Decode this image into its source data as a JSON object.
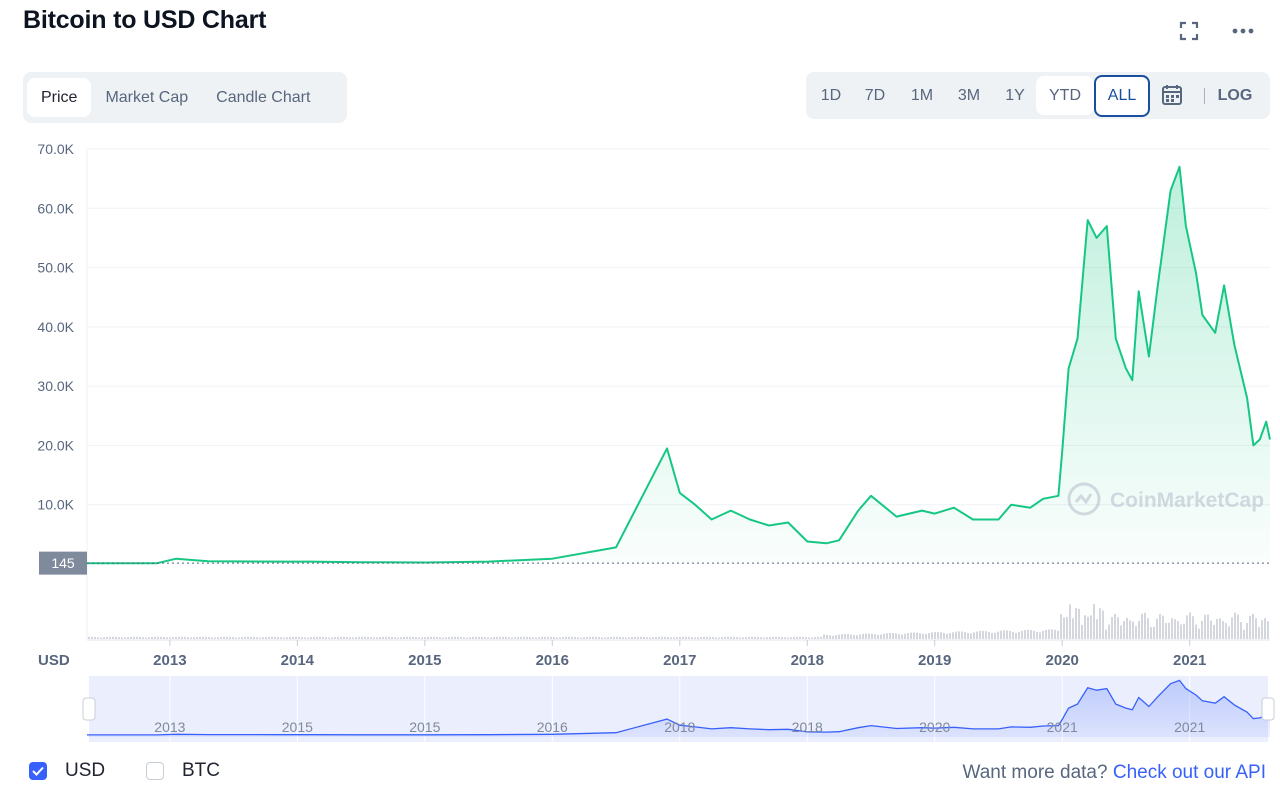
{
  "title": "Bitcoin to USD Chart",
  "tabs": [
    "Price",
    "Market Cap",
    "Candle Chart"
  ],
  "active_tab": "Price",
  "ranges": [
    "1D",
    "7D",
    "1M",
    "3M",
    "1Y",
    "YTD",
    "ALL"
  ],
  "active_range": "ALL",
  "log_label": "LOG",
  "currency_label": "USD",
  "watermark": "CoinMarketCap",
  "legend": [
    {
      "label": "USD",
      "checked": true
    },
    {
      "label": "BTC",
      "checked": false
    }
  ],
  "api_prefix": "Want more data?",
  "api_link": "Check out our API",
  "icons": [
    "expand-icon",
    "more-icon",
    "calendar-icon",
    "check-icon",
    "coinmarketcap-logo-icon"
  ],
  "colors": {
    "line": "#16c784",
    "volume": "#c9ced6",
    "navigator": "#3861fb",
    "accent": "#3861fb"
  },
  "chart_data": {
    "type": "area",
    "title": "",
    "xlabel": "",
    "ylabel": "",
    "y_ticks": [
      "10.0K",
      "20.0K",
      "30.0K",
      "40.0K",
      "50.0K",
      "60.0K",
      "70.0K"
    ],
    "ylim": [
      0,
      70000
    ],
    "x_ticks": [
      "2013",
      "2014",
      "2015",
      "2016",
      "2017",
      "2018",
      "2019",
      "2020",
      "2021"
    ],
    "navigator_ticks": [
      "2013",
      "2015",
      "2015",
      "2016",
      "2018",
      "2018",
      "2020",
      "2021",
      "2021"
    ],
    "baseline_label": "145",
    "baseline_value": 145,
    "grid": true,
    "series": [
      {
        "x": [
          2012.35,
          2012.9,
          2013.05,
          2013.3,
          2013.9,
          2014.1,
          2014.5,
          2015.0,
          2015.5,
          2016.0,
          2016.5,
          2016.9,
          2017.0,
          2017.12,
          2017.25,
          2017.4,
          2017.55,
          2017.7,
          2017.85,
          2018.0,
          2018.15,
          2018.25,
          2018.4,
          2018.5,
          2018.7,
          2018.9,
          2019.0,
          2019.15,
          2019.3,
          2019.5,
          2019.6,
          2019.75,
          2019.85,
          2019.97,
          2020.0,
          2020.05,
          2020.12,
          2020.2,
          2020.27,
          2020.35,
          2020.42,
          2020.5,
          2020.55,
          2020.6,
          2020.68,
          2020.75,
          2020.85,
          2020.92,
          2020.97,
          2021.05,
          2021.1,
          2021.2,
          2021.27,
          2021.35,
          2021.45,
          2021.5,
          2021.55,
          2021.6,
          2021.63
        ],
        "values": [
          140,
          140,
          900,
          450,
          400,
          400,
          300,
          250,
          400,
          900,
          2800,
          19500,
          12000,
          10000,
          7500,
          9000,
          7500,
          6500,
          7000,
          3800,
          3500,
          4000,
          9000,
          11500,
          8000,
          9000,
          8500,
          9500,
          7500,
          7500,
          10000,
          9500,
          11000,
          11500,
          19000,
          33000,
          38000,
          58000,
          55000,
          57000,
          38000,
          33000,
          31000,
          46000,
          35000,
          47000,
          63000,
          67000,
          57000,
          49000,
          42000,
          39000,
          47000,
          37000,
          28000,
          20000,
          21000,
          24000,
          21000
        ]
      }
    ],
    "volume_note": "trading volume histogram",
    "navigator_range": [
      2012.35,
      2021.63
    ]
  }
}
